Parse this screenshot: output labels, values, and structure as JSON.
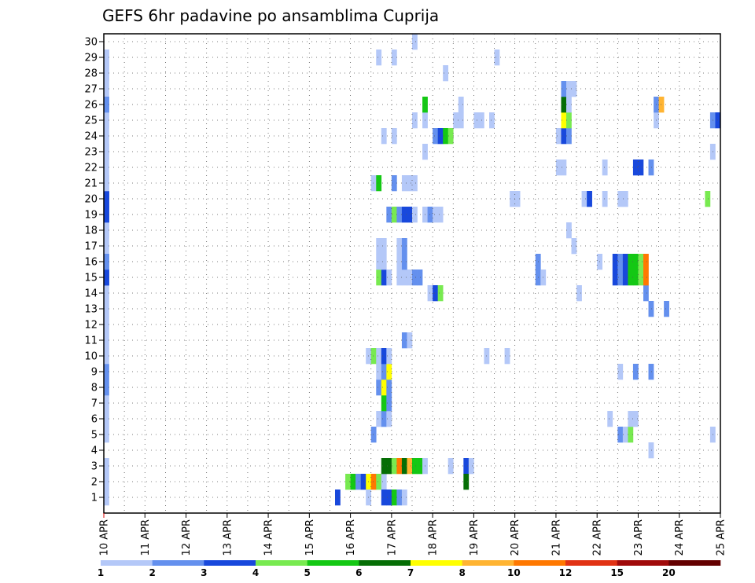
{
  "chart_data": {
    "type": "heatmap",
    "title": "GEFS 6hr padavine po ansamblima Cuprija",
    "xlabel": "",
    "ylabel": "",
    "x_ticks": [
      "10 APR",
      "11 APR",
      "12 APR",
      "13 APR",
      "14 APR",
      "15 APR",
      "16 APR",
      "17 APR",
      "18 APR",
      "19 APR",
      "20 APR",
      "21 APR",
      "22 APR",
      "23 APR",
      "24 APR",
      "25 APR"
    ],
    "y_ticks": [
      "1",
      "2",
      "3",
      "4",
      "5",
      "6",
      "7",
      "8",
      "9",
      "10",
      "11",
      "12",
      "13",
      "14",
      "15",
      "16",
      "17",
      "18",
      "19",
      "20",
      "21",
      "22",
      "23",
      "24",
      "25",
      "26",
      "27",
      "28",
      "29",
      "30"
    ],
    "grid": true,
    "legend_position": "bottom",
    "colorbar": {
      "labels": [
        "1",
        "2",
        "3",
        "4",
        "5",
        "6",
        "7",
        "8",
        "10",
        "12",
        "15",
        "20"
      ],
      "colors": [
        "#b4c8f8",
        "#6490ee",
        "#1848dc",
        "#78ea50",
        "#14c814",
        "#056e05",
        "#ffff00",
        "#ffb432",
        "#ff7800",
        "#e13214",
        "#a00a0a",
        "#640000"
      ]
    },
    "cells": [
      {
        "member": 1,
        "step": 1,
        "level": 1
      },
      {
        "member": 2,
        "step": 1,
        "level": 1
      },
      {
        "member": 3,
        "step": 1,
        "level": 1
      },
      {
        "member": 5,
        "step": 1,
        "level": 1
      },
      {
        "member": 6,
        "step": 1,
        "level": 1
      },
      {
        "member": 7,
        "step": 1,
        "level": 1
      },
      {
        "member": 8,
        "step": 1,
        "level": 2
      },
      {
        "member": 9,
        "step": 1,
        "level": 2
      },
      {
        "member": 10,
        "step": 1,
        "level": 1
      },
      {
        "member": 11,
        "step": 1,
        "level": 1
      },
      {
        "member": 12,
        "step": 1,
        "level": 1
      },
      {
        "member": 13,
        "step": 1,
        "level": 1
      },
      {
        "member": 14,
        "step": 1,
        "level": 1
      },
      {
        "member": 15,
        "step": 1,
        "level": 3
      },
      {
        "member": 16,
        "step": 1,
        "level": 2
      },
      {
        "member": 17,
        "step": 1,
        "level": 1
      },
      {
        "member": 18,
        "step": 1,
        "level": 1
      },
      {
        "member": 19,
        "step": 1,
        "level": 3
      },
      {
        "member": 20,
        "step": 1,
        "level": 3
      },
      {
        "member": 21,
        "step": 1,
        "level": 1
      },
      {
        "member": 22,
        "step": 1,
        "level": 1
      },
      {
        "member": 23,
        "step": 1,
        "level": 1
      },
      {
        "member": 24,
        "step": 1,
        "level": 1
      },
      {
        "member": 25,
        "step": 1,
        "level": 1
      },
      {
        "member": 26,
        "step": 1,
        "level": 2
      },
      {
        "member": 27,
        "step": 1,
        "level": 1
      },
      {
        "member": 28,
        "step": 1,
        "level": 1
      },
      {
        "member": 29,
        "step": 1,
        "level": 1
      },
      {
        "member": 1,
        "step": 46,
        "level": 3
      },
      {
        "member": 2,
        "step": 48,
        "level": 4
      },
      {
        "member": 2,
        "step": 49,
        "level": 5
      },
      {
        "member": 2,
        "step": 50,
        "level": 2
      },
      {
        "member": 2,
        "step": 51,
        "level": 3
      },
      {
        "member": 2,
        "step": 52,
        "level": 7
      },
      {
        "member": 2,
        "step": 53,
        "level": 9
      },
      {
        "member": 2,
        "step": 54,
        "level": 4
      },
      {
        "member": 2,
        "step": 55,
        "level": 1
      },
      {
        "member": 1,
        "step": 52,
        "level": 1
      },
      {
        "member": 1,
        "step": 55,
        "level": 3
      },
      {
        "member": 1,
        "step": 56,
        "level": 3
      },
      {
        "member": 1,
        "step": 57,
        "level": 5
      },
      {
        "member": 1,
        "step": 58,
        "level": 2
      },
      {
        "member": 1,
        "step": 59,
        "level": 1
      },
      {
        "member": 3,
        "step": 55,
        "level": 6
      },
      {
        "member": 3,
        "step": 56,
        "level": 6
      },
      {
        "member": 3,
        "step": 57,
        "level": 4
      },
      {
        "member": 3,
        "step": 58,
        "level": 9
      },
      {
        "member": 3,
        "step": 59,
        "level": 6
      },
      {
        "member": 3,
        "step": 60,
        "level": 8
      },
      {
        "member": 3,
        "step": 61,
        "level": 5
      },
      {
        "member": 3,
        "step": 62,
        "level": 5
      },
      {
        "member": 3,
        "step": 63,
        "level": 1
      },
      {
        "member": 3,
        "step": 68,
        "level": 1
      },
      {
        "member": 3,
        "step": 71,
        "level": 3
      },
      {
        "member": 3,
        "step": 72,
        "level": 1
      },
      {
        "member": 2,
        "step": 71,
        "level": 6
      },
      {
        "member": 4,
        "step": 107,
        "level": 1
      },
      {
        "member": 5,
        "step": 53,
        "level": 2
      },
      {
        "member": 5,
        "step": 101,
        "level": 2
      },
      {
        "member": 5,
        "step": 102,
        "level": 1
      },
      {
        "member": 5,
        "step": 103,
        "level": 4
      },
      {
        "member": 5,
        "step": 119,
        "level": 1
      },
      {
        "member": 6,
        "step": 54,
        "level": 1
      },
      {
        "member": 6,
        "step": 55,
        "level": 2
      },
      {
        "member": 6,
        "step": 56,
        "level": 1
      },
      {
        "member": 6,
        "step": 99,
        "level": 1
      },
      {
        "member": 6,
        "step": 103,
        "level": 1
      },
      {
        "member": 6,
        "step": 104,
        "level": 1
      },
      {
        "member": 7,
        "step": 55,
        "level": 5
      },
      {
        "member": 7,
        "step": 56,
        "level": 2
      },
      {
        "member": 8,
        "step": 54,
        "level": 2
      },
      {
        "member": 8,
        "step": 55,
        "level": 7
      },
      {
        "member": 8,
        "step": 56,
        "level": 2
      },
      {
        "member": 9,
        "step": 54,
        "level": 1
      },
      {
        "member": 9,
        "step": 55,
        "level": 2
      },
      {
        "member": 9,
        "step": 56,
        "level": 7
      },
      {
        "member": 9,
        "step": 101,
        "level": 1
      },
      {
        "member": 9,
        "step": 104,
        "level": 2
      },
      {
        "member": 9,
        "step": 107,
        "level": 2
      },
      {
        "member": 10,
        "step": 52,
        "level": 1
      },
      {
        "member": 10,
        "step": 53,
        "level": 4
      },
      {
        "member": 10,
        "step": 54,
        "level": 1
      },
      {
        "member": 10,
        "step": 55,
        "level": 3
      },
      {
        "member": 10,
        "step": 56,
        "level": 1
      },
      {
        "member": 10,
        "step": 75,
        "level": 1
      },
      {
        "member": 10,
        "step": 79,
        "level": 1
      },
      {
        "member": 11,
        "step": 59,
        "level": 2
      },
      {
        "member": 11,
        "step": 60,
        "level": 1
      },
      {
        "member": 13,
        "step": 107,
        "level": 2
      },
      {
        "member": 13,
        "step": 110,
        "level": 2
      },
      {
        "member": 14,
        "step": 64,
        "level": 1
      },
      {
        "member": 14,
        "step": 65,
        "level": 3
      },
      {
        "member": 14,
        "step": 66,
        "level": 4
      },
      {
        "member": 14,
        "step": 93,
        "level": 1
      },
      {
        "member": 14,
        "step": 106,
        "level": 2
      },
      {
        "member": 15,
        "step": 1,
        "level": 3
      },
      {
        "member": 15,
        "step": 54,
        "level": 4
      },
      {
        "member": 15,
        "step": 55,
        "level": 3
      },
      {
        "member": 15,
        "step": 56,
        "level": 1
      },
      {
        "member": 15,
        "step": 58,
        "level": 1
      },
      {
        "member": 15,
        "step": 59,
        "level": 1
      },
      {
        "member": 15,
        "step": 60,
        "level": 1
      },
      {
        "member": 15,
        "step": 61,
        "level": 2
      },
      {
        "member": 15,
        "step": 62,
        "level": 2
      },
      {
        "member": 15,
        "step": 85,
        "level": 2
      },
      {
        "member": 15,
        "step": 86,
        "level": 1
      },
      {
        "member": 15,
        "step": 100,
        "level": 3
      },
      {
        "member": 15,
        "step": 101,
        "level": 2
      },
      {
        "member": 15,
        "step": 102,
        "level": 3
      },
      {
        "member": 15,
        "step": 103,
        "level": 5
      },
      {
        "member": 15,
        "step": 104,
        "level": 5
      },
      {
        "member": 15,
        "step": 105,
        "level": 4
      },
      {
        "member": 15,
        "step": 106,
        "level": 9
      },
      {
        "member": 16,
        "step": 1,
        "level": 2
      },
      {
        "member": 16,
        "step": 54,
        "level": 1
      },
      {
        "member": 16,
        "step": 55,
        "level": 1
      },
      {
        "member": 16,
        "step": 58,
        "level": 1
      },
      {
        "member": 16,
        "step": 59,
        "level": 2
      },
      {
        "member": 16,
        "step": 85,
        "level": 2
      },
      {
        "member": 16,
        "step": 97,
        "level": 1
      },
      {
        "member": 16,
        "step": 100,
        "level": 3
      },
      {
        "member": 16,
        "step": 101,
        "level": 2
      },
      {
        "member": 16,
        "step": 102,
        "level": 3
      },
      {
        "member": 16,
        "step": 103,
        "level": 5
      },
      {
        "member": 16,
        "step": 104,
        "level": 5
      },
      {
        "member": 16,
        "step": 105,
        "level": 4
      },
      {
        "member": 16,
        "step": 106,
        "level": 9
      },
      {
        "member": 17,
        "step": 54,
        "level": 1
      },
      {
        "member": 17,
        "step": 55,
        "level": 1
      },
      {
        "member": 17,
        "step": 58,
        "level": 1
      },
      {
        "member": 17,
        "step": 59,
        "level": 2
      },
      {
        "member": 17,
        "step": 92,
        "level": 1
      },
      {
        "member": 18,
        "step": 1,
        "level": 1
      },
      {
        "member": 18,
        "step": 91,
        "level": 1
      },
      {
        "member": 19,
        "step": 1,
        "level": 3
      },
      {
        "member": 19,
        "step": 56,
        "level": 2
      },
      {
        "member": 19,
        "step": 57,
        "level": 4
      },
      {
        "member": 19,
        "step": 58,
        "level": 2
      },
      {
        "member": 19,
        "step": 59,
        "level": 3
      },
      {
        "member": 19,
        "step": 60,
        "level": 3
      },
      {
        "member": 19,
        "step": 61,
        "level": 1
      },
      {
        "member": 19,
        "step": 63,
        "level": 1
      },
      {
        "member": 19,
        "step": 64,
        "level": 2
      },
      {
        "member": 19,
        "step": 65,
        "level": 1
      },
      {
        "member": 19,
        "step": 66,
        "level": 1
      },
      {
        "member": 20,
        "step": 1,
        "level": 3
      },
      {
        "member": 20,
        "step": 80,
        "level": 1
      },
      {
        "member": 20,
        "step": 81,
        "level": 1
      },
      {
        "member": 20,
        "step": 94,
        "level": 1
      },
      {
        "member": 20,
        "step": 95,
        "level": 3
      },
      {
        "member": 20,
        "step": 98,
        "level": 1
      },
      {
        "member": 20,
        "step": 101,
        "level": 1
      },
      {
        "member": 20,
        "step": 102,
        "level": 1
      },
      {
        "member": 20,
        "step": 118,
        "level": 4
      },
      {
        "member": 21,
        "step": 1,
        "level": 1
      },
      {
        "member": 21,
        "step": 53,
        "level": 1
      },
      {
        "member": 21,
        "step": 54,
        "level": 5
      },
      {
        "member": 21,
        "step": 57,
        "level": 2
      },
      {
        "member": 21,
        "step": 59,
        "level": 1
      },
      {
        "member": 21,
        "step": 60,
        "level": 1
      },
      {
        "member": 21,
        "step": 61,
        "level": 1
      },
      {
        "member": 22,
        "step": 89,
        "level": 1
      },
      {
        "member": 22,
        "step": 90,
        "level": 1
      },
      {
        "member": 22,
        "step": 98,
        "level": 1
      },
      {
        "member": 22,
        "step": 104,
        "level": 3
      },
      {
        "member": 22,
        "step": 105,
        "level": 3
      },
      {
        "member": 22,
        "step": 107,
        "level": 2
      },
      {
        "member": 23,
        "step": 1,
        "level": 1
      },
      {
        "member": 23,
        "step": 63,
        "level": 1
      },
      {
        "member": 23,
        "step": 119,
        "level": 1
      },
      {
        "member": 24,
        "step": 55,
        "level": 1
      },
      {
        "member": 24,
        "step": 57,
        "level": 1
      },
      {
        "member": 24,
        "step": 65,
        "level": 2
      },
      {
        "member": 24,
        "step": 66,
        "level": 3
      },
      {
        "member": 24,
        "step": 67,
        "level": 5
      },
      {
        "member": 24,
        "step": 68,
        "level": 4
      },
      {
        "member": 24,
        "step": 89,
        "level": 1
      },
      {
        "member": 24,
        "step": 90,
        "level": 3
      },
      {
        "member": 24,
        "step": 91,
        "level": 2
      },
      {
        "member": 25,
        "step": 1,
        "level": 1
      },
      {
        "member": 25,
        "step": 61,
        "level": 1
      },
      {
        "member": 25,
        "step": 63,
        "level": 1
      },
      {
        "member": 25,
        "step": 69,
        "level": 1
      },
      {
        "member": 25,
        "step": 70,
        "level": 1
      },
      {
        "member": 25,
        "step": 73,
        "level": 1
      },
      {
        "member": 25,
        "step": 74,
        "level": 1
      },
      {
        "member": 25,
        "step": 76,
        "level": 1
      },
      {
        "member": 25,
        "step": 90,
        "level": 7
      },
      {
        "member": 25,
        "step": 91,
        "level": 4
      },
      {
        "member": 25,
        "step": 108,
        "level": 1
      },
      {
        "member": 25,
        "step": 119,
        "level": 2
      },
      {
        "member": 25,
        "step": 120,
        "level": 3
      },
      {
        "member": 26,
        "step": 1,
        "level": 2
      },
      {
        "member": 26,
        "step": 63,
        "level": 5
      },
      {
        "member": 26,
        "step": 70,
        "level": 1
      },
      {
        "member": 26,
        "step": 90,
        "level": 6
      },
      {
        "member": 26,
        "step": 91,
        "level": 1
      },
      {
        "member": 26,
        "step": 108,
        "level": 2
      },
      {
        "member": 26,
        "step": 109,
        "level": 8
      },
      {
        "member": 27,
        "step": 90,
        "level": 2
      },
      {
        "member": 27,
        "step": 91,
        "level": 1
      },
      {
        "member": 27,
        "step": 92,
        "level": 1
      },
      {
        "member": 28,
        "step": 1,
        "level": 1
      },
      {
        "member": 28,
        "step": 67,
        "level": 1
      },
      {
        "member": 29,
        "step": 1,
        "level": 1
      },
      {
        "member": 29,
        "step": 54,
        "level": 1
      },
      {
        "member": 29,
        "step": 57,
        "level": 1
      },
      {
        "member": 29,
        "step": 77,
        "level": 1
      },
      {
        "member": 30,
        "step": 61,
        "level": 1
      }
    ]
  }
}
